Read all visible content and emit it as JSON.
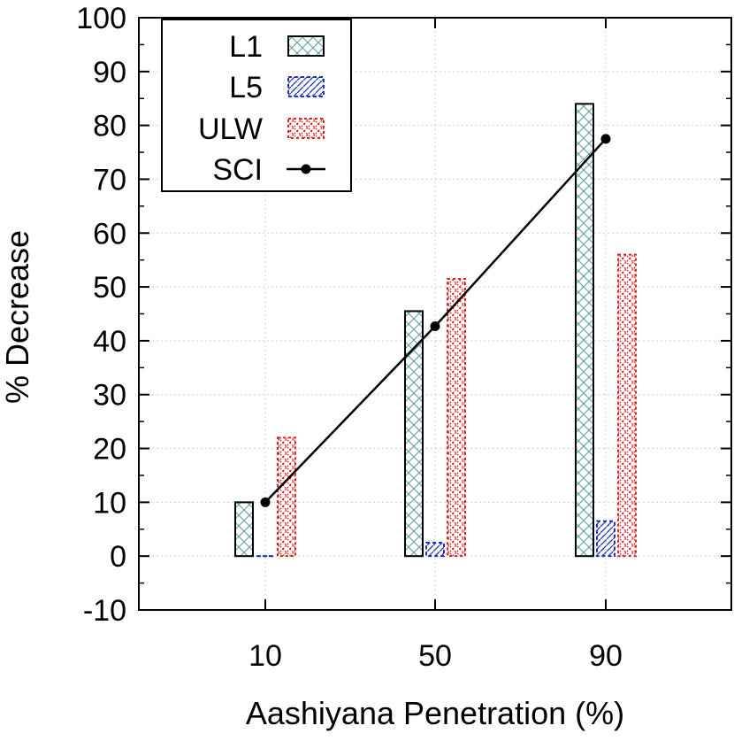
{
  "chart_data": {
    "type": "bar",
    "xlabel": "Aashiyana Penetration (%)",
    "ylabel": "% Decrease",
    "ylim": [
      -10,
      100
    ],
    "yticks": [
      -10,
      0,
      10,
      20,
      30,
      40,
      50,
      60,
      70,
      80,
      90,
      100
    ],
    "categories": [
      "10",
      "50",
      "90"
    ],
    "grid": true,
    "legend_position": "top-left",
    "series": [
      {
        "name": "L1",
        "type": "bar",
        "values": [
          10,
          45.5,
          84
        ],
        "color": "#6fa8a8",
        "pattern": "crosshatch"
      },
      {
        "name": "L5",
        "type": "bar",
        "values": [
          0,
          2.5,
          6.5
        ],
        "color": "#1f2fbf",
        "pattern": "diagonal"
      },
      {
        "name": "ULW",
        "type": "bar",
        "values": [
          22,
          51.5,
          56
        ],
        "color": "#e02020",
        "pattern": "dots"
      },
      {
        "name": "SCI",
        "type": "line",
        "values": [
          10,
          42.7,
          77.5
        ],
        "color": "#000000",
        "marker": "circle"
      }
    ]
  }
}
